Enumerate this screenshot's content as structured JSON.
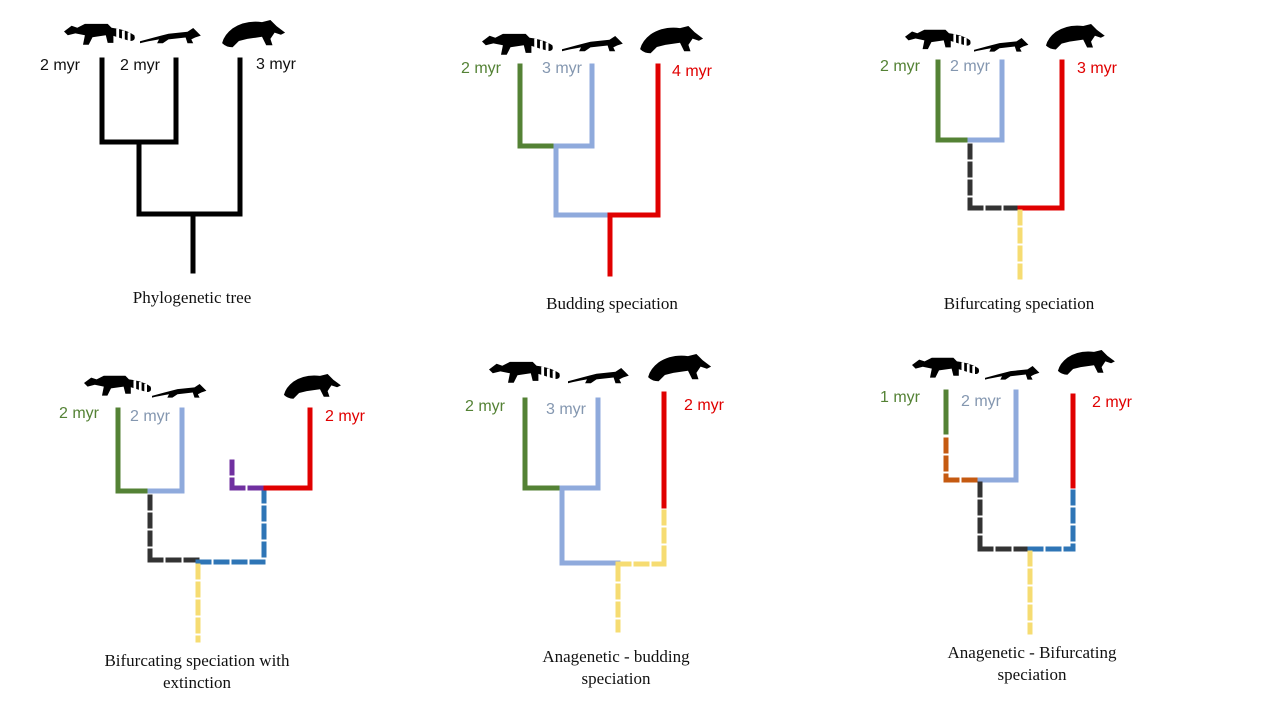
{
  "colors": {
    "black": "#000000",
    "green": "#548235",
    "lightblue": "#8faadc",
    "red": "#e00000",
    "darkgray": "#333333",
    "yellow": "#f6dc72",
    "blue": "#2e75b6",
    "purple": "#7030a0",
    "orange": "#c55a11",
    "label_black": "#111111",
    "label_blue": "#8497b0"
  },
  "icons": [
    "raccoon-icon",
    "weasel-icon",
    "bearcat-icon"
  ],
  "panels": [
    {
      "id": "phylogenetic-tree",
      "caption_lines": [
        "Phylogenetic tree"
      ],
      "ages": [
        {
          "text": "2 myr",
          "color": "label_black"
        },
        {
          "text": "2 myr",
          "color": "label_black"
        },
        {
          "text": "3 myr",
          "color": "label_black"
        }
      ]
    },
    {
      "id": "budding-speciation",
      "caption_lines": [
        "Budding speciation"
      ],
      "ages": [
        {
          "text": "2 myr",
          "color": "green"
        },
        {
          "text": "3 myr",
          "color": "label_blue"
        },
        {
          "text": "4 myr",
          "color": "red"
        }
      ]
    },
    {
      "id": "bifurcating-speciation",
      "caption_lines": [
        "Bifurcating  speciation"
      ],
      "ages": [
        {
          "text": "2 myr",
          "color": "green"
        },
        {
          "text": "2 myr",
          "color": "label_blue"
        },
        {
          "text": "3 myr",
          "color": "red"
        }
      ]
    },
    {
      "id": "bifurcating-extinction",
      "caption_lines": [
        "Bifurcating  speciation with",
        "extinction"
      ],
      "ages": [
        {
          "text": "2 myr",
          "color": "green"
        },
        {
          "text": "2 myr",
          "color": "label_blue"
        },
        {
          "text": "2 myr",
          "color": "red"
        }
      ]
    },
    {
      "id": "anagenetic-budding",
      "caption_lines": [
        "Anagenetic  - budding",
        "speciation"
      ],
      "ages": [
        {
          "text": "2 myr",
          "color": "green"
        },
        {
          "text": "3 myr",
          "color": "label_blue"
        },
        {
          "text": "2 myr",
          "color": "red"
        }
      ]
    },
    {
      "id": "anagenetic-bifurcating",
      "caption_lines": [
        "Anagenetic  - Bifurcating",
        "speciation"
      ],
      "ages": [
        {
          "text": "1 myr",
          "color": "green"
        },
        {
          "text": "2 myr",
          "color": "label_blue"
        },
        {
          "text": "2 myr",
          "color": "red"
        }
      ]
    }
  ]
}
